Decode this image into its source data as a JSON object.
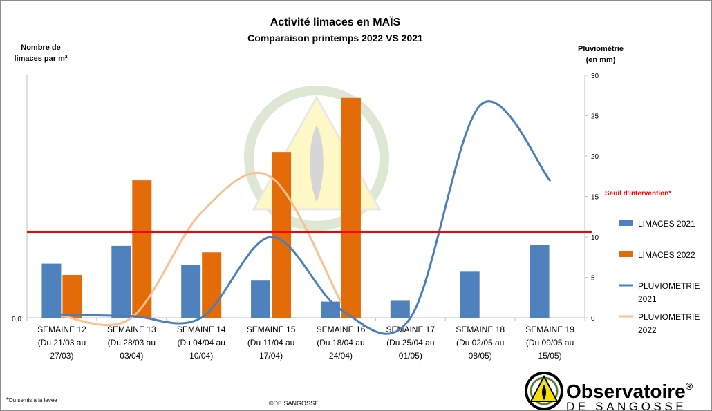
{
  "colors": {
    "limaces_2021": "#4f81bd",
    "limaces_2022": "#e36c09",
    "pluvio_2021": "#4a7ebb",
    "pluvio_2022": "#fac090",
    "threshold": "#ff0000",
    "logo_yellow": "#f7e000"
  },
  "chart_data": {
    "type": "bar",
    "title": "Activité limaces en MAÏS",
    "subtitle": "Comparaison printemps 2022 VS 2021",
    "ylabel_left": [
      "Nombre de",
      "limaces par m²"
    ],
    "ylabel_right": [
      "Pluviométrie",
      "(en mm)"
    ],
    "left_axis_tick": "0,0",
    "right_ylim": [
      0,
      30
    ],
    "right_ticks": [
      0,
      5,
      10,
      15,
      20,
      25,
      30
    ],
    "categories": [
      [
        "SEMAINE 12",
        "(Du 21/03 au",
        "27/03)"
      ],
      [
        "SEMAINE 13",
        "(Du 28/03 au",
        "03/04)"
      ],
      [
        "SEMAINE 14",
        "(Du 04/04 au",
        "10/04)"
      ],
      [
        "SEMAINE 15",
        "(Du 11/04 au",
        "17/04)"
      ],
      [
        "SEMAINE 16",
        "(Du 18/04 au",
        "24/04)"
      ],
      [
        "SEMAINE 17",
        "(Du 25/04 au",
        "01/05)"
      ],
      [
        "SEMAINE 18",
        "(Du 02/05 au",
        "08/05)"
      ],
      [
        "SEMAINE 19",
        "(Du 09/05 au",
        "15/05)"
      ]
    ],
    "bar_series": [
      {
        "name": "LIMACES 2021",
        "values": [
          6.7,
          8.9,
          6.5,
          4.6,
          2.0,
          2.1,
          5.7,
          9.0
        ]
      },
      {
        "name": "LIMACES 2022",
        "values": [
          5.3,
          17.0,
          8.1,
          20.5,
          27.2,
          null,
          null,
          null
        ]
      }
    ],
    "line_series": [
      {
        "name": "PLUVIOMETRIE 2021",
        "values": [
          0.4,
          0.2,
          0.0,
          10.0,
          1.0,
          0.0,
          26.3,
          17.0
        ]
      },
      {
        "name": "PLUVIOMETRIE 2022",
        "values": [
          0.2,
          0.0,
          13.0,
          17.4,
          2.0,
          null,
          null,
          null
        ]
      }
    ],
    "threshold": {
      "value": 10.6,
      "label": "Seuil d'intervention*"
    },
    "legend": [
      {
        "lines": [
          "LIMACES 2021"
        ],
        "kind": "bar",
        "color_key": "limaces_2021"
      },
      {
        "lines": [
          "LIMACES 2022"
        ],
        "kind": "bar",
        "color_key": "limaces_2022"
      },
      {
        "lines": [
          "PLUVIOMETRIE",
          "2021"
        ],
        "kind": "line",
        "color_key": "pluvio_2021"
      },
      {
        "lines": [
          "PLUVIOMETRIE",
          "2022"
        ],
        "kind": "line",
        "color_key": "pluvio_2022"
      }
    ],
    "legend_position": "right",
    "grid": false
  },
  "footnote": {
    "star": "*",
    "text": "Du semis à la levée"
  },
  "copyright": "©DE SANGOSSE",
  "logo": {
    "line1": "Observatoire",
    "reg": "®",
    "line2": "DE SANGOSSE"
  }
}
